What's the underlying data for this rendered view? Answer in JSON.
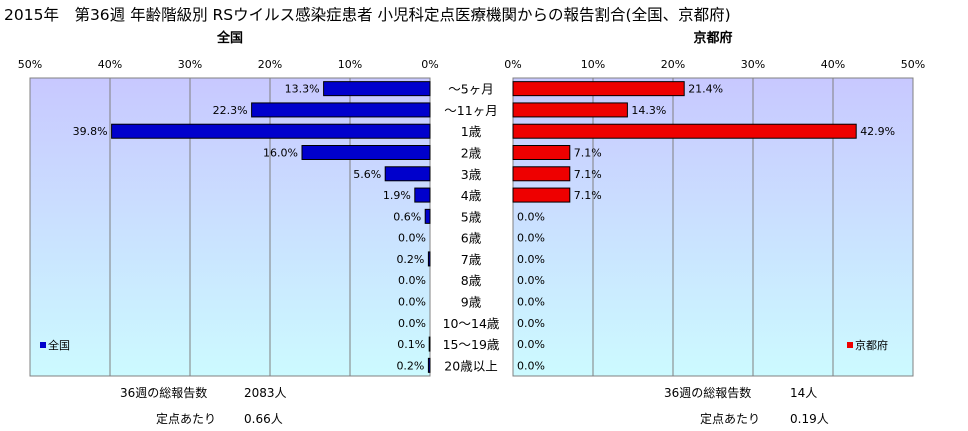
{
  "title": "2015年　第36週 年齢階級別 RSウイルス感染症患者 小児科定点医療機関からの報告割合(全国、京都府)",
  "colors": {
    "national": "#0000cc",
    "kyoto": "#ee0000",
    "plot_top": "#c8c8ff",
    "plot_bottom": "#ccfaff"
  },
  "chart_data": [
    {
      "type": "bar",
      "orientation": "horizontal",
      "direction": "right-to-left",
      "title": "全国",
      "legend": "全国",
      "legend_position": "bottom-left",
      "xlim": [
        0,
        50
      ],
      "ticks": [
        "0%",
        "10%",
        "20%",
        "30%",
        "40%",
        "50%"
      ],
      "grid": true,
      "categories": [
        "〜5ヶ月",
        "〜11ヶ月",
        "1歳",
        "2歳",
        "3歳",
        "4歳",
        "5歳",
        "6歳",
        "7歳",
        "8歳",
        "9歳",
        "10〜14歳",
        "15〜19歳",
        "20歳以上"
      ],
      "values": [
        13.3,
        22.3,
        39.8,
        16.0,
        5.6,
        1.9,
        0.6,
        0.0,
        0.2,
        0.0,
        0.0,
        0.0,
        0.1,
        0.2
      ],
      "labels": [
        "13.3%",
        "22.3%",
        "39.8%",
        "16.0%",
        "5.6%",
        "1.9%",
        "0.6%",
        "0.0%",
        "0.2%",
        "0.0%",
        "0.0%",
        "0.0%",
        "0.1%",
        "0.2%"
      ]
    },
    {
      "type": "bar",
      "orientation": "horizontal",
      "direction": "left-to-right",
      "title": "京都府",
      "legend": "京都府",
      "legend_position": "bottom-right",
      "xlim": [
        0,
        50
      ],
      "ticks": [
        "0%",
        "10%",
        "20%",
        "30%",
        "40%",
        "50%"
      ],
      "grid": true,
      "categories": [
        "〜5ヶ月",
        "〜11ヶ月",
        "1歳",
        "2歳",
        "3歳",
        "4歳",
        "5歳",
        "6歳",
        "7歳",
        "8歳",
        "9歳",
        "10〜14歳",
        "15〜19歳",
        "20歳以上"
      ],
      "values": [
        21.4,
        14.3,
        42.9,
        7.1,
        7.1,
        7.1,
        0.0,
        0.0,
        0.0,
        0.0,
        0.0,
        0.0,
        0.0,
        0.0
      ],
      "labels": [
        "21.4%",
        "14.3%",
        "42.9%",
        "7.1%",
        "7.1%",
        "7.1%",
        "0.0%",
        "0.0%",
        "0.0%",
        "0.0%",
        "0.0%",
        "0.0%",
        "0.0%",
        "0.0%"
      ]
    }
  ],
  "summary": {
    "national": {
      "total_label": "36週の総報告数",
      "total_value": "2083人",
      "per_label": "定点あたり",
      "per_value": "0.66人"
    },
    "kyoto": {
      "total_label": "36週の総報告数",
      "total_value": "14人",
      "per_label": "定点あたり",
      "per_value": "0.19人"
    }
  }
}
